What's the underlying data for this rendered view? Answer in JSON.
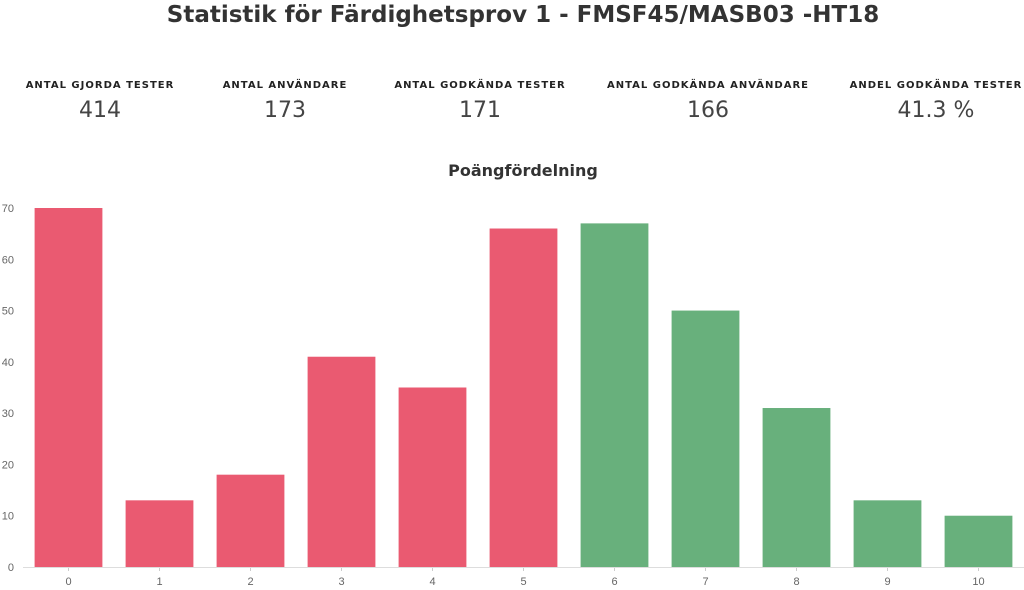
{
  "header": {
    "title": "Statistik för Färdighetsprov 1 - FMSF45/MASB03 -HT18"
  },
  "stats": [
    {
      "label": "ANTAL GJORDA TESTER",
      "value": "414"
    },
    {
      "label": "ANTAL ANVÄNDARE",
      "value": "173"
    },
    {
      "label": "ANTAL GODKÄNDA TESTER",
      "value": "171"
    },
    {
      "label": "ANTAL GODKÄNDA ANVÄNDARE",
      "value": "166"
    },
    {
      "label": "ANDEL GODKÄNDA TESTER",
      "value": "41.3 %"
    }
  ],
  "colors": {
    "fail": "#ea5a71",
    "pass": "#68b07c"
  },
  "chart_data": {
    "type": "bar",
    "title": "Poängfördelning",
    "categories": [
      "0",
      "1",
      "2",
      "3",
      "4",
      "5",
      "6",
      "7",
      "8",
      "9",
      "10"
    ],
    "values": [
      70,
      13,
      18,
      41,
      35,
      66,
      67,
      50,
      31,
      13,
      10
    ],
    "status": [
      "fail",
      "fail",
      "fail",
      "fail",
      "fail",
      "fail",
      "pass",
      "pass",
      "pass",
      "pass",
      "pass"
    ],
    "xlabel": "",
    "ylabel": "",
    "ylim": [
      0,
      70
    ],
    "yticks": [
      0,
      10,
      20,
      30,
      40,
      50,
      60,
      70
    ],
    "grid": false,
    "legend": "none"
  }
}
